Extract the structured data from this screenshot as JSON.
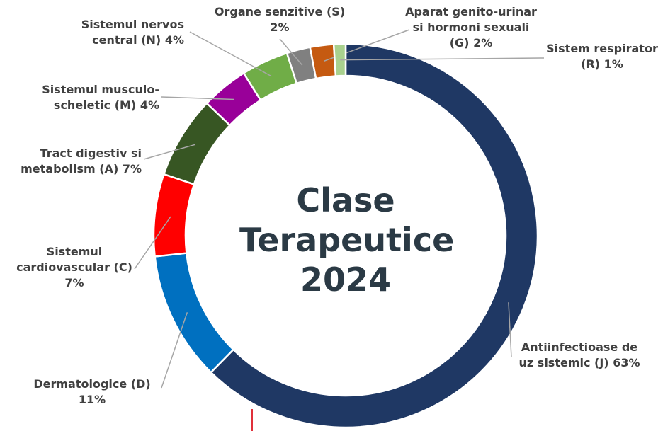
{
  "chart_data": {
    "type": "donut",
    "title": "Clase Terapeutice 2024",
    "categories": [
      "Antiinfectioase de uz sistemic (J)",
      "Dermatologice (D)",
      "Sistemul cardiovascular (C)",
      "Tract digestiv si metabolism (A)",
      "Sistemul musculo-scheletic (M)",
      "Sistemul nervos central (N)",
      "Organe senzitive (S)",
      "Aparat genito-urinar si hormoni sexuali (G)",
      "Sistem respirator (R)"
    ],
    "values": [
      63,
      11,
      7,
      7,
      4,
      4,
      2,
      2,
      1
    ],
    "value_labels": [
      "63%",
      "11%",
      "7%",
      "7%",
      "4%",
      "4%",
      "2%",
      "2%",
      "1%"
    ],
    "colors": [
      "#1f3864",
      "#0070c0",
      "#ff0000",
      "#375623",
      "#990099",
      "#70ad47",
      "#808080",
      "#c55a11",
      "#a9d18e"
    ]
  }
}
